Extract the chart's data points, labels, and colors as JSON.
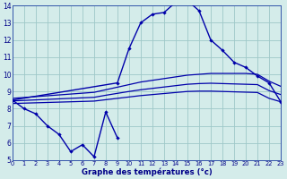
{
  "xlabel": "Graphe des températures (°c)",
  "bg_color": "#d4ecea",
  "grid_color": "#9ec8c8",
  "line_color": "#0000aa",
  "hours": [
    0,
    1,
    2,
    3,
    4,
    5,
    6,
    7,
    8,
    9,
    10,
    11,
    12,
    13,
    14,
    15,
    16,
    17,
    18,
    19,
    20,
    21,
    22,
    23
  ],
  "curve_main": [
    8.5,
    null,
    null,
    null,
    null,
    null,
    null,
    null,
    null,
    9.5,
    11.5,
    13.0,
    13.5,
    13.6,
    14.2,
    14.3,
    13.7,
    12.0,
    11.4,
    10.7,
    10.4,
    9.9,
    9.5,
    8.4
  ],
  "curve_low": [
    8.5,
    8.0,
    7.7,
    7.0,
    6.5,
    5.5,
    5.9,
    5.2,
    7.8,
    6.3,
    null,
    null,
    null,
    null,
    null,
    null,
    null,
    null,
    null,
    null,
    null,
    null,
    null,
    null
  ],
  "trend_high": [
    8.6,
    8.65,
    8.7,
    8.75,
    8.8,
    8.85,
    8.9,
    8.95,
    9.1,
    9.25,
    9.4,
    9.55,
    9.65,
    9.75,
    9.85,
    9.95,
    10.0,
    10.05,
    10.05,
    10.05,
    10.05,
    10.0,
    9.6,
    9.3
  ],
  "trend_mid": [
    8.45,
    8.48,
    8.51,
    8.54,
    8.57,
    8.6,
    8.63,
    8.66,
    8.78,
    8.89,
    9.0,
    9.1,
    9.18,
    9.26,
    9.34,
    9.42,
    9.46,
    9.48,
    9.46,
    9.44,
    9.42,
    9.4,
    9.05,
    8.82
  ],
  "trend_low2": [
    8.3,
    8.32,
    8.34,
    8.36,
    8.38,
    8.4,
    8.42,
    8.44,
    8.52,
    8.6,
    8.68,
    8.76,
    8.82,
    8.88,
    8.94,
    9.0,
    9.02,
    9.02,
    9.0,
    8.98,
    8.96,
    8.94,
    8.6,
    8.4
  ],
  "ylim": [
    5,
    14
  ],
  "yticks": [
    5,
    6,
    7,
    8,
    9,
    10,
    11,
    12,
    13,
    14
  ],
  "xlim": [
    0,
    23
  ]
}
